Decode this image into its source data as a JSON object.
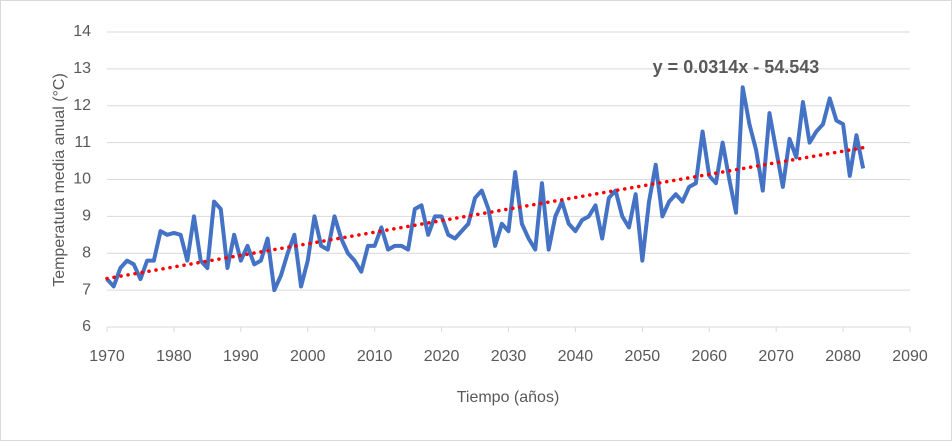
{
  "chart_data": {
    "type": "line",
    "x_label": "Tiempo (años)",
    "y_label": "Temperatuta media anual (°C)",
    "x": [
      1970,
      1971,
      1972,
      1973,
      1974,
      1975,
      1976,
      1977,
      1978,
      1979,
      1980,
      1981,
      1982,
      1983,
      1984,
      1985,
      1986,
      1987,
      1988,
      1989,
      1990,
      1991,
      1992,
      1993,
      1994,
      1995,
      1996,
      1997,
      1998,
      1999,
      2000,
      2001,
      2002,
      2003,
      2004,
      2005,
      2006,
      2007,
      2008,
      2009,
      2010,
      2011,
      2012,
      2013,
      2014,
      2015,
      2016,
      2017,
      2018,
      2019,
      2020,
      2021,
      2022,
      2023,
      2024,
      2025,
      2026,
      2027,
      2028,
      2029,
      2030,
      2031,
      2032,
      2033,
      2034,
      2035,
      2036,
      2037,
      2038,
      2039,
      2040,
      2041,
      2042,
      2043,
      2044,
      2045,
      2046,
      2047,
      2048,
      2049,
      2050,
      2051,
      2052,
      2053,
      2054,
      2055,
      2056,
      2057,
      2058,
      2059,
      2060,
      2061,
      2062,
      2063,
      2064,
      2065,
      2066,
      2067,
      2068,
      2069,
      2070,
      2071,
      2072,
      2073,
      2074,
      2075,
      2076,
      2077,
      2078,
      2079,
      2080,
      2081,
      2082,
      2083
    ],
    "series": [
      {
        "color": "#4472c4",
        "values": [
          7.3,
          7.1,
          7.6,
          7.8,
          7.7,
          7.3,
          7.8,
          7.8,
          8.6,
          8.5,
          8.55,
          8.5,
          7.8,
          9.0,
          7.8,
          7.6,
          9.4,
          9.2,
          7.6,
          8.5,
          7.8,
          8.2,
          7.7,
          7.8,
          8.4,
          7.0,
          7.4,
          8.0,
          8.5,
          7.1,
          7.8,
          9.0,
          8.2,
          8.1,
          9.0,
          8.4,
          8.0,
          7.8,
          7.5,
          8.2,
          8.2,
          8.7,
          8.1,
          8.2,
          8.2,
          8.1,
          9.2,
          9.3,
          8.5,
          9.0,
          9.0,
          8.5,
          8.4,
          8.6,
          8.8,
          9.5,
          9.7,
          9.2,
          8.2,
          8.8,
          8.6,
          10.2,
          8.8,
          8.4,
          8.1,
          9.9,
          8.1,
          9.0,
          9.4,
          8.8,
          8.6,
          8.9,
          9.0,
          9.3,
          8.4,
          9.5,
          9.7,
          9.0,
          8.7,
          9.6,
          7.8,
          9.4,
          10.4,
          9.0,
          9.4,
          9.6,
          9.4,
          9.8,
          9.9,
          11.3,
          10.1,
          9.9,
          11.0,
          10.0,
          9.1,
          12.5,
          11.5,
          10.8,
          9.7,
          11.8,
          10.8,
          9.8,
          11.1,
          10.6,
          12.1,
          11.0,
          11.3,
          11.5,
          12.2,
          11.6,
          11.5,
          10.1,
          11.2,
          10.3
        ]
      }
    ],
    "trendline": {
      "label": "y = 0.0314x - 54.543",
      "slope": 0.0314,
      "intercept": -54.543,
      "color": "#ff0000"
    },
    "xlim": [
      1970,
      2090
    ],
    "xticks": [
      1970,
      1980,
      1990,
      2000,
      2010,
      2020,
      2030,
      2040,
      2050,
      2060,
      2070,
      2080,
      2090
    ],
    "ylim": [
      6,
      14
    ],
    "yticks": [
      6,
      7,
      8,
      9,
      10,
      11,
      12,
      13,
      14
    ],
    "grid": true
  }
}
